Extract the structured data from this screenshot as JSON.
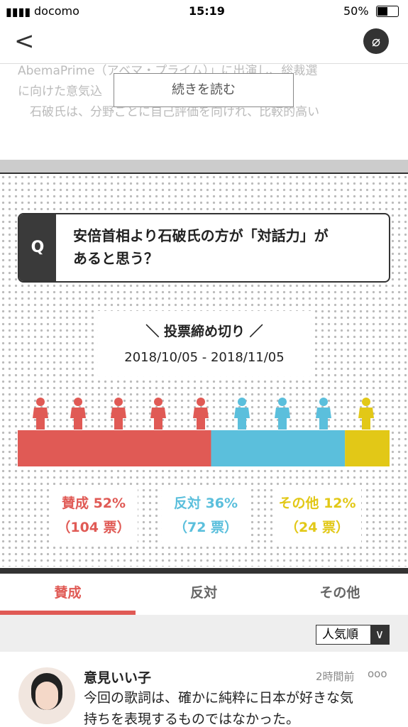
{
  "status_bar": {
    "carrier": "docomo",
    "time": "15:19",
    "battery": "50%"
  },
  "article": {
    "lines": [
      "AbemaPrime（アベマ・プライム）」に出演し、総裁選",
      "に向けた意気込",
      "　石破氏は、分野ごとに自己評価を向けれ、比較的高い"
    ],
    "read_more": "続きを読む"
  },
  "poll": {
    "q_mark": "Q",
    "question_lines": [
      "安倍首相より石破氏の方が「対話力」が",
      "あると思う？"
    ],
    "deadline_title": "＼ 投票締め切り ／",
    "deadline_range": "2018/10/05 - 2018/11/05",
    "results": [
      {
        "label": "賛成 52%",
        "percent": 52,
        "votes_label": "（104 票）",
        "color": "#e05a55"
      },
      {
        "label": "反対 36%",
        "percent": 36,
        "votes_label": "（72 票）",
        "color": "#5bbfdc"
      },
      {
        "label": "その他 12%",
        "percent": 12,
        "votes_label": "（24 票）",
        "color": "#e2c817"
      }
    ]
  },
  "tabs": [
    "賛成",
    "反対",
    "その他"
  ],
  "sort": "人気順",
  "comment": {
    "author": "意見いい子",
    "time": "2時間前",
    "lines": [
      "今回の歌詞は、確かに純粋に日本が好きな気",
      "持ちを表現するものではなかった。"
    ]
  }
}
